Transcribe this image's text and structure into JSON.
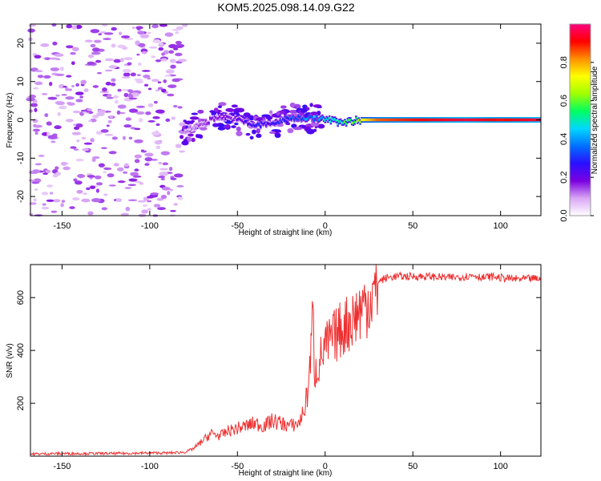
{
  "figure": {
    "title": "KOM5.2025.098.14.09.G22"
  },
  "chart_data": [
    {
      "type": "heatmap",
      "xlabel": "Height of straight line (km)",
      "ylabel": "Frequency (Hz)",
      "xlim": [
        -168,
        123
      ],
      "ylim": [
        -25,
        25
      ],
      "xticks": [
        -150,
        -100,
        -50,
        0,
        50,
        100
      ],
      "yticks": [
        -20,
        -10,
        0,
        10,
        20
      ],
      "colorbar": {
        "label": "Normalized spectral amplitude",
        "range": [
          0,
          1
        ],
        "ticks": [
          "0.0",
          "0.2",
          "0.4",
          "0.6",
          "0.8"
        ],
        "colormap": [
          "#ffffff",
          "#d9a6f5",
          "#7a00e0",
          "#2a10ff",
          "#0070ff",
          "#00d8ff",
          "#00ff60",
          "#a0ff00",
          "#ffff00",
          "#ff9000",
          "#ff0000",
          "#ff0080"
        ]
      },
      "ridge": {
        "description_points_x": [
          -80,
          -70,
          -60,
          -50,
          -40,
          -30,
          -20,
          -10,
          0,
          10,
          20,
          30,
          50,
          80,
          100,
          123
        ],
        "frequency_hz": [
          -3,
          -1,
          1,
          0,
          -1.5,
          -1,
          0.5,
          0.5,
          0.2,
          -0.8,
          0,
          0,
          0,
          0,
          0,
          0
        ],
        "amplitude": [
          0.1,
          0.15,
          0.2,
          0.2,
          0.3,
          0.25,
          0.35,
          0.4,
          0.45,
          0.55,
          0.7,
          0.85,
          0.9,
          0.95,
          0.9,
          0.95
        ]
      }
    },
    {
      "type": "line",
      "xlabel": "Height of straight line (km)",
      "ylabel": "SNR (v/v)",
      "xlim": [
        -168,
        123
      ],
      "ylim": [
        0,
        725
      ],
      "xticks": [
        -150,
        -100,
        -50,
        0,
        50,
        100
      ],
      "yticks": [
        200,
        400,
        600
      ],
      "color": "#ee3030",
      "series": [
        {
          "x": [
            -168,
            -150,
            -120,
            -100,
            -90,
            -80,
            -75,
            -70,
            -65,
            -60,
            -55,
            -50,
            -45,
            -40,
            -35,
            -30,
            -25,
            -20,
            -15,
            -12,
            -10,
            -8,
            -7,
            -6,
            -5,
            -4,
            -2,
            0,
            5,
            10,
            15,
            20,
            25,
            30,
            35,
            40,
            50,
            60,
            70,
            80,
            85,
            90,
            95,
            100,
            105,
            110,
            123
          ],
          "y": [
            8,
            10,
            10,
            12,
            12,
            15,
            30,
            60,
            90,
            80,
            100,
            110,
            120,
            130,
            120,
            140,
            130,
            120,
            130,
            180,
            250,
            420,
            580,
            330,
            340,
            360,
            400,
            430,
            470,
            510,
            540,
            580,
            620,
            660,
            675,
            680,
            680,
            680,
            675,
            680,
            685,
            675,
            680,
            675,
            672,
            670,
            672
          ]
        }
      ]
    }
  ]
}
